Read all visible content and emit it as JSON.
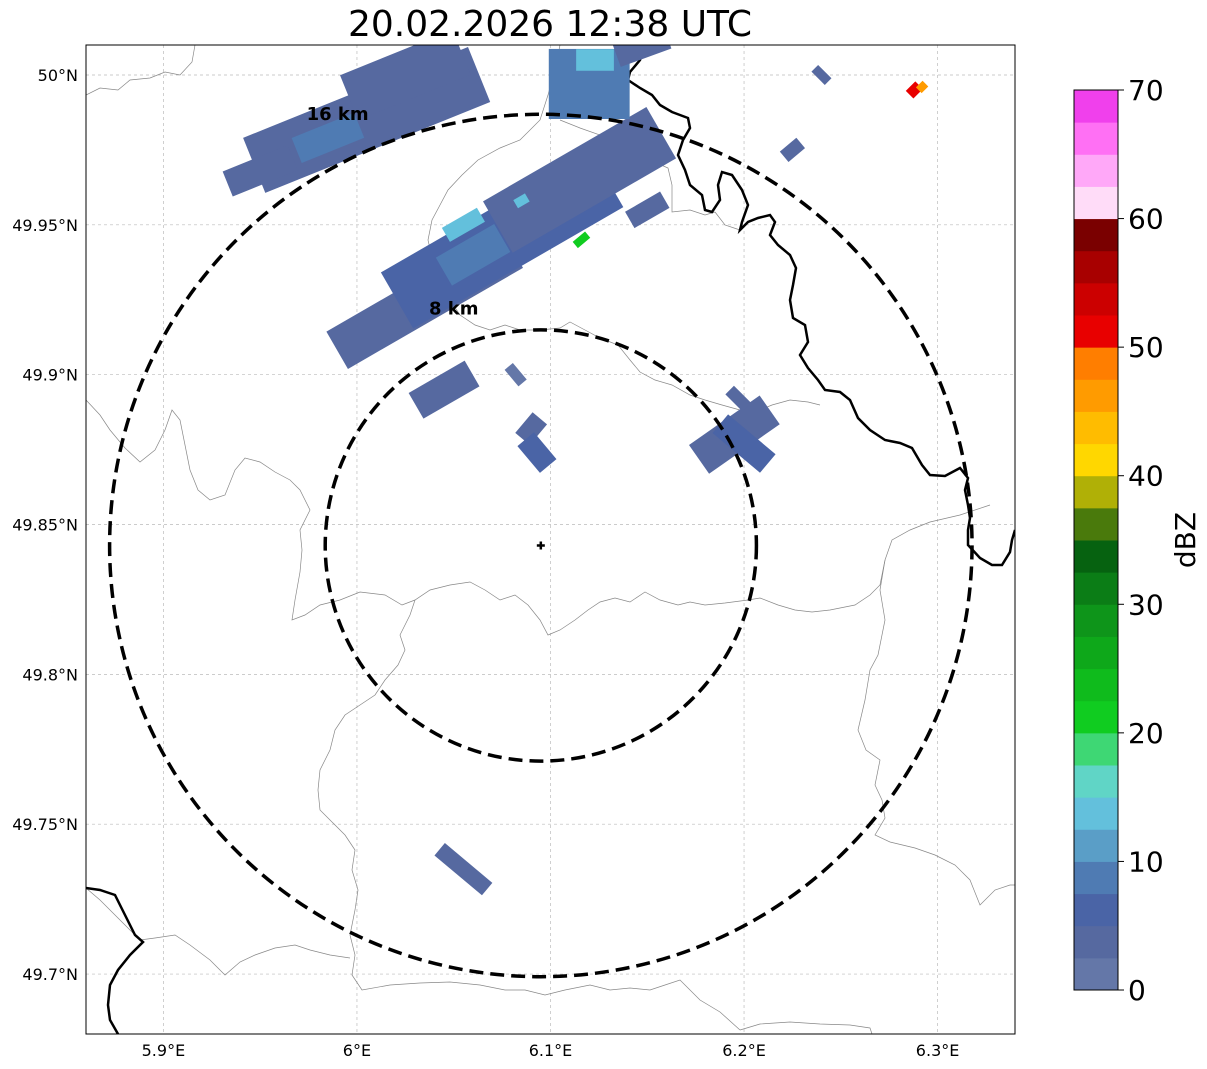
{
  "title": "20.02.2026 12:38 UTC",
  "map": {
    "lon_range": [
      5.86,
      6.34
    ],
    "lat_range": [
      49.68,
      50.01
    ],
    "grid": true,
    "lat_ticks": [
      {
        "value": 50.0,
        "label": "50°N"
      },
      {
        "value": 49.95,
        "label": "49.95°N"
      },
      {
        "value": 49.9,
        "label": "49.9°N"
      },
      {
        "value": 49.85,
        "label": "49.85°N"
      },
      {
        "value": 49.8,
        "label": "49.8°N"
      },
      {
        "value": 49.75,
        "label": "49.75°N"
      },
      {
        "value": 49.7,
        "label": "49.7°N"
      }
    ],
    "lon_ticks": [
      {
        "value": 5.9,
        "label": "5.9°E"
      },
      {
        "value": 6.0,
        "label": "6°E"
      },
      {
        "value": 6.1,
        "label": "6.1°E"
      },
      {
        "value": 6.2,
        "label": "6.2°E"
      },
      {
        "value": 6.3,
        "label": "6.3°E"
      }
    ],
    "radar_site": {
      "lon": 6.095,
      "lat": 49.843
    },
    "range_rings": [
      {
        "label": "8 km",
        "radius_km": 8,
        "label_lon": 6.05,
        "label_lat": 49.92
      },
      {
        "label": "16 km",
        "radius_km": 16,
        "label_lon": 5.99,
        "label_lat": 49.985
      }
    ],
    "echoes": [
      {
        "lon": 6.035,
        "lat": 49.925,
        "along_km": 7.5,
        "across_km": 1.6,
        "angle": -30,
        "dbz": 4
      },
      {
        "lon": 6.075,
        "lat": 49.945,
        "along_km": 9.0,
        "across_km": 2.4,
        "angle": -30,
        "dbz": 5
      },
      {
        "lon": 6.115,
        "lat": 49.965,
        "along_km": 7.0,
        "across_km": 2.2,
        "angle": -30,
        "dbz": 3
      },
      {
        "lon": 6.06,
        "lat": 49.94,
        "along_km": 2.5,
        "across_km": 1.2,
        "angle": -30,
        "dbz": 8
      },
      {
        "lon": 6.055,
        "lat": 49.95,
        "along_km": 1.5,
        "across_km": 0.6,
        "angle": -30,
        "dbz": 13
      },
      {
        "lon": 6.085,
        "lat": 49.958,
        "along_km": 0.5,
        "across_km": 0.35,
        "angle": -30,
        "dbz": 14
      },
      {
        "lon": 6.116,
        "lat": 49.945,
        "along_km": 0.6,
        "across_km": 0.3,
        "angle": -40,
        "dbz": 20
      },
      {
        "lon": 6.045,
        "lat": 49.895,
        "along_km": 2.4,
        "across_km": 1.1,
        "angle": -30,
        "dbz": 4
      },
      {
        "lon": 6.082,
        "lat": 49.9,
        "along_km": 0.8,
        "across_km": 0.4,
        "angle": 50,
        "dbz": 2
      },
      {
        "lon": 6.005,
        "lat": 49.985,
        "along_km": 9.0,
        "across_km": 2.2,
        "angle": -22,
        "dbz": 4
      },
      {
        "lon": 5.985,
        "lat": 49.979,
        "along_km": 2.5,
        "across_km": 1.0,
        "angle": -22,
        "dbz": 9
      },
      {
        "lon": 5.95,
        "lat": 49.968,
        "along_km": 2.6,
        "across_km": 1.0,
        "angle": -22,
        "dbz": 4
      },
      {
        "lon": 6.025,
        "lat": 50.0,
        "along_km": 4.5,
        "across_km": 1.8,
        "angle": -22,
        "dbz": 3
      },
      {
        "lon": 6.12,
        "lat": 49.997,
        "along_km": 3.0,
        "across_km": 2.6,
        "angle": 0,
        "dbz": 9
      },
      {
        "lon": 6.123,
        "lat": 50.005,
        "along_km": 1.4,
        "across_km": 0.8,
        "angle": 0,
        "dbz": 14
      },
      {
        "lon": 6.147,
        "lat": 50.01,
        "along_km": 2.0,
        "across_km": 1.0,
        "angle": -20,
        "dbz": 4
      },
      {
        "lon": 6.09,
        "lat": 49.882,
        "along_km": 1.0,
        "across_km": 0.7,
        "angle": -50,
        "dbz": 4
      },
      {
        "lon": 6.093,
        "lat": 49.874,
        "along_km": 1.3,
        "across_km": 0.8,
        "angle": 50,
        "dbz": 5
      },
      {
        "lon": 6.195,
        "lat": 49.88,
        "along_km": 3.2,
        "across_km": 1.3,
        "angle": -35,
        "dbz": 4
      },
      {
        "lon": 6.2,
        "lat": 49.877,
        "along_km": 2.3,
        "across_km": 0.9,
        "angle": 40,
        "dbz": 5
      },
      {
        "lon": 6.197,
        "lat": 49.892,
        "along_km": 0.9,
        "across_km": 0.45,
        "angle": 45,
        "dbz": 3
      },
      {
        "lon": 6.055,
        "lat": 49.735,
        "along_km": 2.3,
        "across_km": 0.6,
        "angle": 40,
        "dbz": 4
      },
      {
        "lon": 6.24,
        "lat": 50.0,
        "along_km": 0.7,
        "across_km": 0.35,
        "angle": 45,
        "dbz": 3
      },
      {
        "lon": 6.225,
        "lat": 49.975,
        "along_km": 0.8,
        "across_km": 0.5,
        "angle": -40,
        "dbz": 3
      },
      {
        "lon": 6.15,
        "lat": 49.955,
        "along_km": 1.5,
        "across_km": 0.7,
        "angle": -30,
        "dbz": 3
      },
      {
        "lon": 6.288,
        "lat": 49.995,
        "along_km": 0.5,
        "across_km": 0.4,
        "angle": -45,
        "dbz": 52
      },
      {
        "lon": 6.292,
        "lat": 49.996,
        "along_km": 0.35,
        "across_km": 0.3,
        "angle": -45,
        "dbz": 47
      }
    ]
  },
  "colorbar": {
    "label": "dBZ",
    "min": 0,
    "max": 70,
    "step": 2.5,
    "tick_labels": [
      "0",
      "10",
      "20",
      "30",
      "40",
      "50",
      "60",
      "70"
    ],
    "colors": [
      "#6477a8",
      "#5669a0",
      "#4a64a6",
      "#4f7bb3",
      "#5a9ec7",
      "#63c0dc",
      "#60d5c6",
      "#3ed774",
      "#10cc20",
      "#0fbb1c",
      "#0ea81a",
      "#0e951a",
      "#0b7d16",
      "#066210",
      "#4a7a0c",
      "#b0b006",
      "#ffd700",
      "#ffbc00",
      "#ff9b00",
      "#ff7e00",
      "#e80000",
      "#cc0000",
      "#a80000",
      "#7a0000",
      "#ffdcf8",
      "#ffa8f8",
      "#ff70f4",
      "#f040ec"
    ]
  }
}
